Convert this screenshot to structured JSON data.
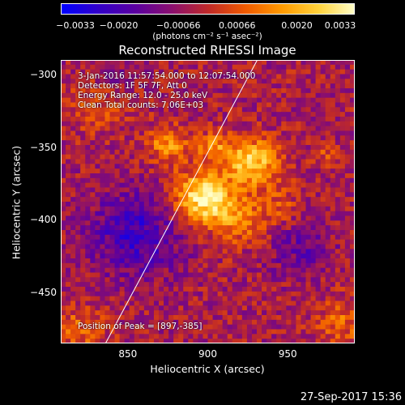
{
  "chart_data": {
    "type": "heatmap",
    "title": "Reconstructed RHESSI Image",
    "xlabel": "Heliocentric X (arcsec)",
    "ylabel": "Heliocentric Y (arcsec)",
    "xlim": [
      808,
      992
    ],
    "ylim": [
      -485,
      -290
    ],
    "xticks": [
      850,
      900,
      950
    ],
    "yticks": [
      -300,
      -350,
      -400,
      -450
    ],
    "xtick_labels": [
      "850",
      "900",
      "950"
    ],
    "ytick_labels": [
      "−300",
      "−350",
      "−400",
      "−450"
    ],
    "colorbar": {
      "min": -0.0033,
      "max": 0.0033,
      "tick_values": [
        -0.0033,
        -0.002,
        -0.00066,
        0.00066,
        0.002,
        0.0033
      ],
      "tick_labels": [
        "−0.0033",
        "−0.0020",
        "−0.00066",
        "0.00066",
        "0.0020",
        "0.0033"
      ],
      "units_label": "(photons cm⁻² s⁻¹ asec⁻²)",
      "colormap": [
        "#0000ff",
        "#3200c8",
        "#5a00a0",
        "#8a0f6e",
        "#c02a28",
        "#f05a00",
        "#ff9a00",
        "#ffd23c",
        "#ffffcc"
      ]
    },
    "annotations": {
      "time_range": "3-Jan-2016 11:57:54.000 to 12:07:54.000",
      "detectors": "Detectors: 1F 5F 7F, Att 0",
      "energy_range": "Energy Range: 12.0 - 25.0 keV",
      "clean": "Clean     Total counts: 7.06E+03",
      "peak_position": "Position of Peak = [897,-385]"
    },
    "limb_line": {
      "points": [
        [
          836,
          -485
        ],
        [
          931,
          -290
        ]
      ]
    },
    "sources": [
      {
        "x": 897,
        "y": -385,
        "sigma": 13,
        "peak": 0.0034
      },
      {
        "x": 928,
        "y": -360,
        "sigma": 11,
        "peak": 0.0029
      },
      {
        "x": 875,
        "y": -348,
        "sigma": 9,
        "peak": 0.0019
      },
      {
        "x": 905,
        "y": -350,
        "sigma": 8,
        "peak": 0.0016
      },
      {
        "x": 920,
        "y": -400,
        "sigma": 12,
        "peak": 0.0015
      },
      {
        "x": 945,
        "y": -390,
        "sigma": 10,
        "peak": 0.0008
      },
      {
        "x": 820,
        "y": -475,
        "sigma": 12,
        "peak": 0.0012
      },
      {
        "x": 985,
        "y": -470,
        "sigma": 12,
        "peak": 0.0012
      },
      {
        "x": 830,
        "y": -320,
        "sigma": 14,
        "peak": 0.0009
      },
      {
        "x": 975,
        "y": -355,
        "sigma": 5,
        "peak": 0.0009
      },
      {
        "x": 855,
        "y": -410,
        "sigma": 20,
        "peak": -0.0018
      },
      {
        "x": 958,
        "y": -420,
        "sigma": 14,
        "peak": -0.001
      },
      {
        "x": 840,
        "y": -300,
        "sigma": 12,
        "peak": -0.0006
      }
    ]
  },
  "footer": {
    "datetime": "27-Sep-2017 15:36"
  }
}
